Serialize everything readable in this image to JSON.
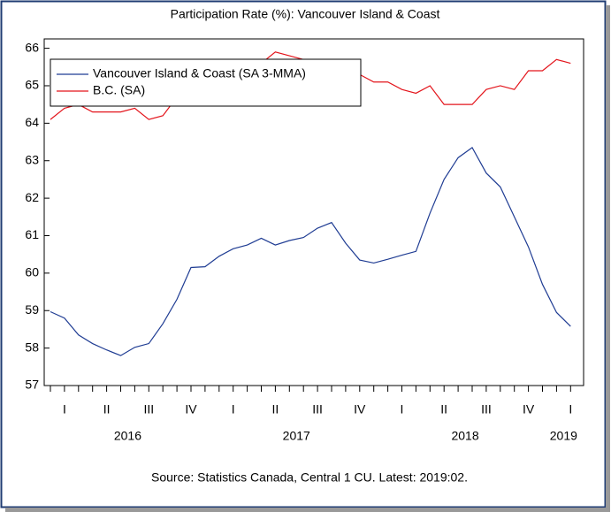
{
  "chart_data": {
    "type": "line",
    "title": "Participation Rate (%): Vancouver Island & Coast",
    "source": "Source: Statistics Canada, Central 1 CU. Latest: 2019:02.",
    "categories": [
      null,
      "I",
      null,
      null,
      "II",
      null,
      null,
      "III",
      null,
      null,
      "IV",
      null,
      null,
      "I",
      null,
      null,
      "II",
      null,
      null,
      "III",
      null,
      null,
      "IV",
      null,
      null,
      "I",
      null,
      null,
      "II",
      null,
      null,
      "III",
      null,
      null,
      "IV",
      null,
      null,
      "I"
    ],
    "year_groups": [
      {
        "label": "2016",
        "months": 12
      },
      {
        "label": "2017",
        "months": 12
      },
      {
        "label": "2018",
        "months": 12
      },
      {
        "label": "2019",
        "months": 2
      }
    ],
    "series": [
      {
        "name": "Vancouver Island & Coast (SA 3-MMA)",
        "color": "#1f3c93",
        "values": [
          58.97,
          58.8,
          58.35,
          58.12,
          57.95,
          57.8,
          58.02,
          58.12,
          58.65,
          59.3,
          60.15,
          60.17,
          60.45,
          60.65,
          60.75,
          60.93,
          60.75,
          60.87,
          60.95,
          61.2,
          61.35,
          60.8,
          60.35,
          60.27,
          60.37,
          60.48,
          60.58,
          61.6,
          62.5,
          63.08,
          63.35,
          62.67,
          62.3,
          61.5,
          60.7,
          59.7,
          58.95,
          58.58
        ]
      },
      {
        "name": "B.C. (SA)",
        "color": "#e3141b",
        "values": [
          64.1,
          64.4,
          64.5,
          64.3,
          64.3,
          64.3,
          64.4,
          64.1,
          64.2,
          64.7,
          65.0,
          65.1,
          65.2,
          65.4,
          65.5,
          65.6,
          65.9,
          65.8,
          65.7,
          65.6,
          65.5,
          65.4,
          65.3,
          65.1,
          65.1,
          64.9,
          64.8,
          65.0,
          64.5,
          64.5,
          64.5,
          64.9,
          65.0,
          64.9,
          65.4,
          65.4,
          65.7,
          65.6
        ]
      }
    ],
    "ylim": [
      57,
      66.25
    ],
    "yticks": [
      57,
      58,
      59,
      60,
      61,
      62,
      63,
      64,
      65,
      66
    ],
    "legend": "upper left"
  }
}
